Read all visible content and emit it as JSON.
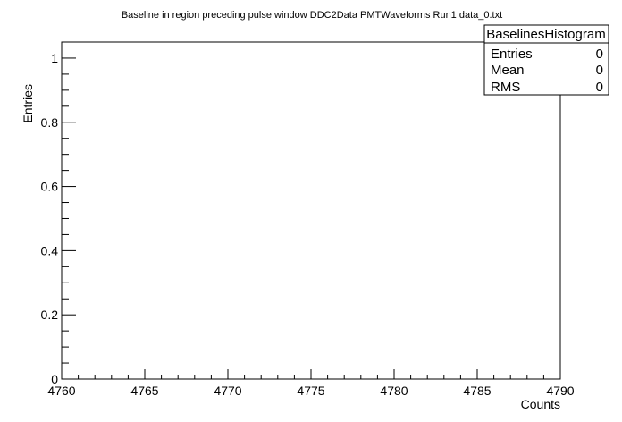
{
  "chart_data": {
    "type": "bar",
    "title": "Baseline in region preceding pulse window DDC2Data PMTWaveforms Run1 data_0.txt",
    "xlabel": "Counts",
    "ylabel": "Entries",
    "xlim": [
      4760,
      4790
    ],
    "ylim": [
      0,
      1.05
    ],
    "x_ticks": [
      "4760",
      "4765",
      "4770",
      "4775",
      "4780",
      "4785",
      "4790"
    ],
    "y_ticks": [
      "0",
      "0.2",
      "0.4",
      "0.6",
      "0.8",
      "1"
    ],
    "values": [],
    "grid": false,
    "legend_position": "top-right"
  },
  "stats_box": {
    "name": "BaselinesHistogram",
    "rows": [
      {
        "label": "Entries",
        "value": "0"
      },
      {
        "label": "Mean",
        "value": "0"
      },
      {
        "label": "RMS",
        "value": "0"
      }
    ]
  }
}
